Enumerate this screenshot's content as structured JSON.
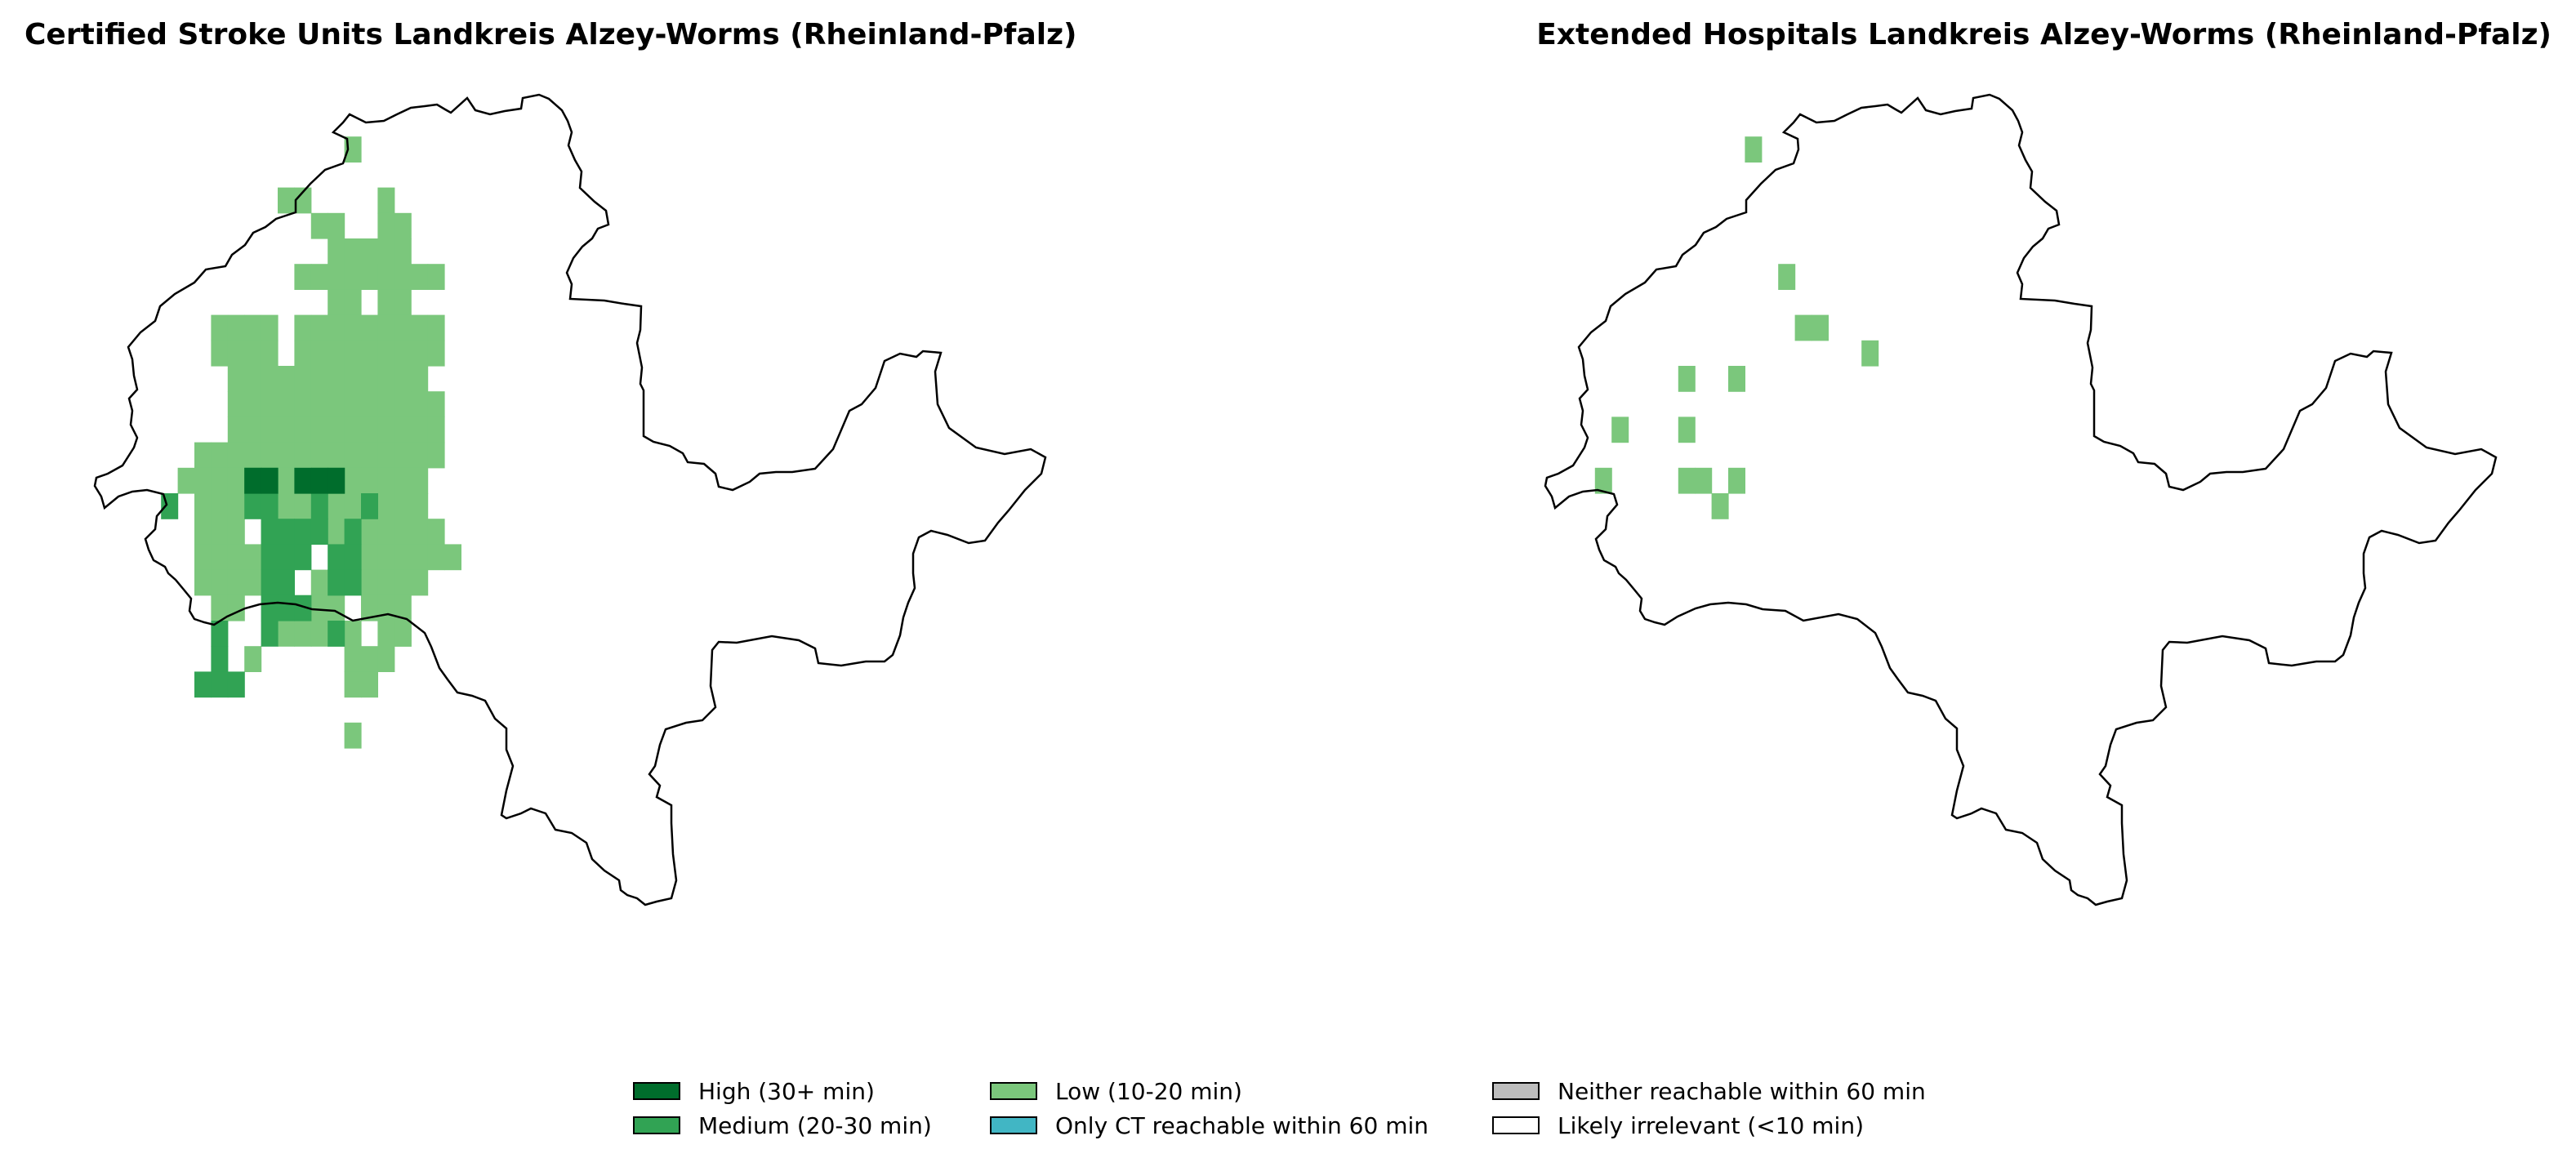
{
  "panels": [
    {
      "title": "Certified Stroke Units Landkreis Alzey-Worms (Rheinland-Pfalz)",
      "cells": {
        "low": [
          [
            14,
            1
          ],
          [
            10,
            3
          ],
          [
            11,
            3
          ],
          [
            16,
            3
          ],
          [
            12,
            4
          ],
          [
            13,
            4
          ],
          [
            16,
            4
          ],
          [
            17,
            4
          ],
          [
            16,
            5
          ],
          [
            17,
            5
          ],
          [
            13,
            5
          ],
          [
            14,
            5
          ],
          [
            15,
            5
          ],
          [
            11,
            6
          ],
          [
            12,
            6
          ],
          [
            13,
            6
          ],
          [
            14,
            6
          ],
          [
            15,
            6
          ],
          [
            16,
            6
          ],
          [
            17,
            6
          ],
          [
            18,
            6
          ],
          [
            19,
            6
          ],
          [
            13,
            7
          ],
          [
            14,
            7
          ],
          [
            16,
            7
          ],
          [
            17,
            7
          ],
          [
            6,
            8
          ],
          [
            7,
            8
          ],
          [
            8,
            8
          ],
          [
            9,
            8
          ],
          [
            11,
            8
          ],
          [
            12,
            8
          ],
          [
            13,
            8
          ],
          [
            14,
            8
          ],
          [
            15,
            8
          ],
          [
            16,
            8
          ],
          [
            17,
            8
          ],
          [
            18,
            8
          ],
          [
            19,
            8
          ],
          [
            6,
            9
          ],
          [
            7,
            9
          ],
          [
            8,
            9
          ],
          [
            9,
            9
          ],
          [
            11,
            9
          ],
          [
            12,
            9
          ],
          [
            13,
            9
          ],
          [
            14,
            9
          ],
          [
            15,
            9
          ],
          [
            16,
            9
          ],
          [
            17,
            9
          ],
          [
            18,
            9
          ],
          [
            19,
            9
          ],
          [
            7,
            10
          ],
          [
            8,
            10
          ],
          [
            9,
            10
          ],
          [
            10,
            10
          ],
          [
            11,
            10
          ],
          [
            12,
            10
          ],
          [
            13,
            10
          ],
          [
            14,
            10
          ],
          [
            15,
            10
          ],
          [
            16,
            10
          ],
          [
            17,
            10
          ],
          [
            18,
            10
          ],
          [
            7,
            11
          ],
          [
            8,
            11
          ],
          [
            9,
            11
          ],
          [
            10,
            11
          ],
          [
            11,
            11
          ],
          [
            12,
            11
          ],
          [
            13,
            11
          ],
          [
            14,
            11
          ],
          [
            15,
            11
          ],
          [
            16,
            11
          ],
          [
            17,
            11
          ],
          [
            18,
            11
          ],
          [
            19,
            11
          ],
          [
            7,
            12
          ],
          [
            8,
            12
          ],
          [
            9,
            12
          ],
          [
            10,
            12
          ],
          [
            11,
            12
          ],
          [
            12,
            12
          ],
          [
            13,
            12
          ],
          [
            14,
            12
          ],
          [
            15,
            12
          ],
          [
            16,
            12
          ],
          [
            17,
            12
          ],
          [
            18,
            12
          ],
          [
            19,
            12
          ],
          [
            5,
            13
          ],
          [
            6,
            13
          ],
          [
            7,
            13
          ],
          [
            8,
            13
          ],
          [
            9,
            13
          ],
          [
            10,
            13
          ],
          [
            11,
            13
          ],
          [
            12,
            13
          ],
          [
            13,
            13
          ],
          [
            14,
            13
          ],
          [
            15,
            13
          ],
          [
            16,
            13
          ],
          [
            17,
            13
          ],
          [
            18,
            13
          ],
          [
            19,
            13
          ],
          [
            4,
            14
          ],
          [
            5,
            14
          ],
          [
            6,
            14
          ],
          [
            7,
            14
          ],
          [
            9,
            14
          ],
          [
            10,
            14
          ],
          [
            11,
            14
          ],
          [
            12,
            14
          ],
          [
            13,
            14
          ],
          [
            14,
            14
          ],
          [
            15,
            14
          ],
          [
            16,
            14
          ],
          [
            17,
            14
          ],
          [
            18,
            14
          ],
          [
            5,
            15
          ],
          [
            6,
            15
          ],
          [
            7,
            15
          ],
          [
            10,
            15
          ],
          [
            11,
            15
          ],
          [
            13,
            15
          ],
          [
            14,
            15
          ],
          [
            15,
            15
          ],
          [
            16,
            15
          ],
          [
            17,
            15
          ],
          [
            18,
            15
          ],
          [
            5,
            16
          ],
          [
            6,
            16
          ],
          [
            7,
            16
          ],
          [
            9,
            16
          ],
          [
            13,
            16
          ],
          [
            15,
            16
          ],
          [
            16,
            16
          ],
          [
            17,
            16
          ],
          [
            18,
            16
          ],
          [
            19,
            16
          ],
          [
            5,
            17
          ],
          [
            6,
            17
          ],
          [
            7,
            17
          ],
          [
            8,
            17
          ],
          [
            9,
            17
          ],
          [
            15,
            17
          ],
          [
            16,
            17
          ],
          [
            17,
            17
          ],
          [
            18,
            17
          ],
          [
            19,
            17
          ],
          [
            20,
            17
          ],
          [
            5,
            18
          ],
          [
            6,
            18
          ],
          [
            7,
            18
          ],
          [
            8,
            18
          ],
          [
            12,
            18
          ],
          [
            15,
            18
          ],
          [
            16,
            18
          ],
          [
            17,
            18
          ],
          [
            18,
            18
          ],
          [
            6,
            19
          ],
          [
            7,
            19
          ],
          [
            10,
            19
          ],
          [
            11,
            19
          ],
          [
            12,
            19
          ],
          [
            13,
            19
          ],
          [
            15,
            19
          ],
          [
            16,
            19
          ],
          [
            17,
            19
          ],
          [
            10,
            20
          ],
          [
            11,
            20
          ],
          [
            12,
            20
          ],
          [
            13,
            20
          ],
          [
            14,
            20
          ],
          [
            16,
            20
          ],
          [
            17,
            20
          ],
          [
            17,
            20
          ],
          [
            8,
            21
          ],
          [
            14,
            21
          ],
          [
            15,
            21
          ],
          [
            16,
            21
          ],
          [
            14,
            22
          ],
          [
            15,
            22
          ],
          [
            14,
            24
          ]
        ],
        "medium": [
          [
            8,
            14
          ],
          [
            9,
            14
          ],
          [
            12,
            14
          ],
          [
            13,
            14
          ],
          [
            3,
            15
          ],
          [
            8,
            15
          ],
          [
            9,
            15
          ],
          [
            12,
            15
          ],
          [
            15,
            15
          ],
          [
            9,
            16
          ],
          [
            10,
            16
          ],
          [
            11,
            16
          ],
          [
            12,
            16
          ],
          [
            14,
            16
          ],
          [
            9,
            17
          ],
          [
            10,
            17
          ],
          [
            11,
            17
          ],
          [
            13,
            17
          ],
          [
            14,
            17
          ],
          [
            9,
            18
          ],
          [
            10,
            18
          ],
          [
            13,
            18
          ],
          [
            14,
            18
          ],
          [
            9,
            19
          ],
          [
            10,
            19
          ],
          [
            11,
            19
          ],
          [
            9,
            20
          ],
          [
            13,
            20
          ],
          [
            6,
            20
          ],
          [
            6,
            21
          ],
          [
            5,
            22
          ],
          [
            6,
            22
          ],
          [
            7,
            22
          ]
        ],
        "high": [
          [
            8,
            14
          ],
          [
            9,
            14
          ],
          [
            11,
            14
          ],
          [
            12,
            14
          ],
          [
            13,
            14
          ]
        ]
      }
    },
    {
      "title": "Extended Hospitals Landkreis Alzey-Worms (Rheinland-Pfalz)",
      "cells": {
        "low": [
          [
            11,
            1
          ],
          [
            13,
            6
          ],
          [
            14,
            8
          ],
          [
            15,
            8
          ],
          [
            18,
            9
          ],
          [
            7,
            10
          ],
          [
            10,
            10
          ],
          [
            3,
            12
          ],
          [
            7,
            12
          ],
          [
            2,
            14
          ],
          [
            7,
            14
          ],
          [
            8,
            14
          ],
          [
            10,
            14
          ],
          [
            9,
            15
          ]
        ],
        "medium": [],
        "high": []
      }
    }
  ],
  "legend": [
    {
      "label": "High (30+ min)",
      "color": "#006d2c"
    },
    {
      "label": "Medium (20-30 min)",
      "color": "#31a354"
    },
    {
      "label": "Low (10-20 min)",
      "color": "#7bc77c"
    },
    {
      "label": "Only CT reachable within 60 min",
      "color": "#41b6c4"
    },
    {
      "label": "Neither reachable within 60 min",
      "color": "#bdbdbd"
    },
    {
      "label": "Likely irrelevant (<10 min)",
      "color": "#ffffff"
    }
  ]
}
